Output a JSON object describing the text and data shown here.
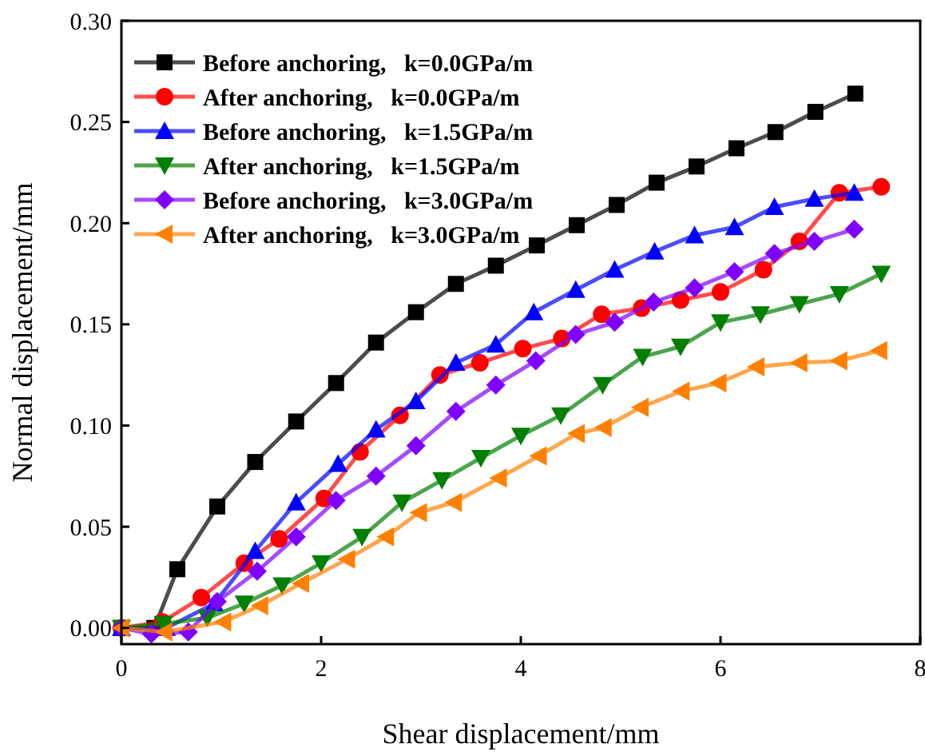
{
  "chart_data": {
    "type": "line",
    "xlabel": "Shear displacement/mm",
    "ylabel": "Normal displacement/mm",
    "xlim": [
      0,
      8
    ],
    "xticks": [
      0,
      2,
      4,
      6,
      8
    ],
    "ylim": [
      -0.008,
      0.3
    ],
    "yticks": [
      {
        "value": 0,
        "label": "0.00"
      },
      {
        "value": 0.05,
        "label": "0.05"
      },
      {
        "value": 0.1,
        "label": "0.10"
      },
      {
        "value": 0.15,
        "label": "0.15"
      },
      {
        "value": 0.2,
        "label": "0.20"
      },
      {
        "value": 0.25,
        "label": "0.25"
      },
      {
        "value": 0.3,
        "label": "0.30"
      }
    ],
    "legend": "top left",
    "grid": false,
    "line_style": "solid",
    "series": [
      {
        "name": "Before anchoring,   k=0.0GPa/m",
        "color": "#000000",
        "marker": "square",
        "x": [
          0,
          0.33,
          0.56,
          0.96,
          1.34,
          1.75,
          2.15,
          2.55,
          2.95,
          3.35,
          3.75,
          4.16,
          4.56,
          4.96,
          5.36,
          5.76,
          6.16,
          6.55,
          6.95,
          7.35
        ],
        "values": [
          0,
          0,
          0.029,
          0.06,
          0.082,
          0.102,
          0.121,
          0.141,
          0.156,
          0.17,
          0.179,
          0.189,
          0.199,
          0.209,
          0.22,
          0.228,
          0.237,
          0.245,
          0.255,
          0.264
        ]
      },
      {
        "name": "After anchoring,   k=0.0GPa/m",
        "color": "#ff0000",
        "marker": "circle",
        "x": [
          0,
          0.41,
          0.8,
          1.23,
          1.58,
          2.03,
          2.39,
          2.79,
          3.19,
          3.59,
          4.02,
          4.41,
          4.81,
          5.21,
          5.6,
          6.0,
          6.43,
          6.79,
          7.19,
          7.61
        ],
        "values": [
          0,
          0.003,
          0.015,
          0.032,
          0.044,
          0.064,
          0.087,
          0.105,
          0.125,
          0.131,
          0.138,
          0.143,
          0.155,
          0.158,
          0.162,
          0.166,
          0.177,
          0.191,
          0.215,
          0.218
        ]
      },
      {
        "name": "Before anchoring,   k=1.5GPa/m",
        "color": "#0000ff",
        "marker": "triangle",
        "x": [
          0,
          0.45,
          0.93,
          1.34,
          1.75,
          2.17,
          2.55,
          2.95,
          3.35,
          3.75,
          4.13,
          4.55,
          4.94,
          5.34,
          5.74,
          6.14,
          6.54,
          6.94,
          7.34
        ],
        "values": [
          0,
          0,
          0.012,
          0.038,
          0.062,
          0.081,
          0.098,
          0.112,
          0.131,
          0.14,
          0.156,
          0.167,
          0.177,
          0.186,
          0.194,
          0.198,
          0.208,
          0.212,
          0.215
        ]
      },
      {
        "name": "After anchoring,   k=1.5GPa/m",
        "color": "#007f00",
        "marker": "triangle-down",
        "x": [
          0,
          0.42,
          0.86,
          1.23,
          1.61,
          2.0,
          2.41,
          2.81,
          3.21,
          3.6,
          4.0,
          4.4,
          4.82,
          5.22,
          5.6,
          6.0,
          6.4,
          6.79,
          7.19,
          7.61
        ],
        "values": [
          0,
          0.002,
          0.005,
          0.012,
          0.021,
          0.032,
          0.045,
          0.062,
          0.073,
          0.084,
          0.095,
          0.105,
          0.12,
          0.134,
          0.139,
          0.151,
          0.155,
          0.16,
          0.165,
          0.175
        ]
      },
      {
        "name": "Before anchoring,   k=3.0GPa/m",
        "color": "#8000ff",
        "marker": "diamond",
        "x": [
          0,
          0.3,
          0.67,
          0.96,
          1.36,
          1.75,
          2.15,
          2.55,
          2.95,
          3.35,
          3.75,
          4.15,
          4.55,
          4.94,
          5.33,
          5.74,
          6.14,
          6.54,
          6.94,
          7.34
        ],
        "values": [
          0,
          -0.003,
          -0.002,
          0.013,
          0.028,
          0.045,
          0.063,
          0.075,
          0.09,
          0.107,
          0.12,
          0.132,
          0.145,
          0.151,
          0.161,
          0.168,
          0.176,
          0.185,
          0.191,
          0.197
        ]
      },
      {
        "name": "After anchoring,   k=3.0GPa/m",
        "color": "#ff8000",
        "marker": "triangle-left",
        "x": [
          0,
          0.43,
          1.02,
          1.39,
          1.8,
          2.26,
          2.65,
          2.98,
          3.33,
          3.78,
          4.18,
          4.56,
          4.83,
          5.2,
          5.61,
          5.98,
          6.36,
          6.79,
          7.19,
          7.59
        ],
        "values": [
          0,
          -0.002,
          0.003,
          0.011,
          0.022,
          0.034,
          0.045,
          0.057,
          0.062,
          0.074,
          0.085,
          0.096,
          0.099,
          0.109,
          0.117,
          0.121,
          0.129,
          0.131,
          0.132,
          0.137
        ]
      }
    ]
  }
}
